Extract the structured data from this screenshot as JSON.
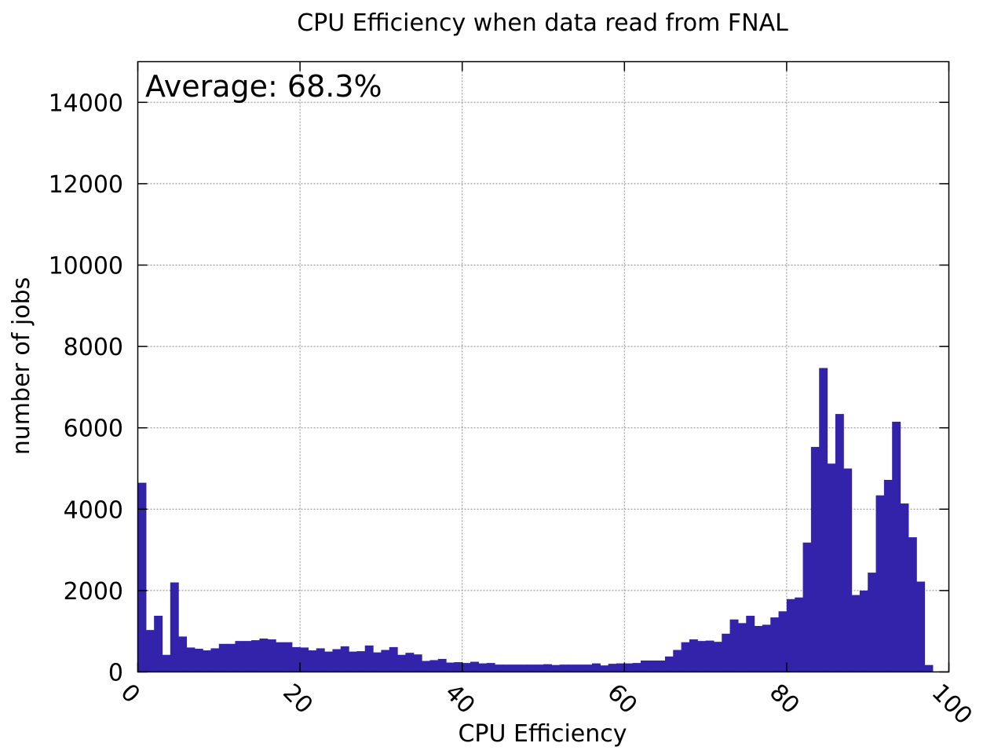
{
  "chart_data": {
    "type": "bar",
    "title": "CPU Efficiency when data read from FNAL",
    "xlabel": "CPU Efficiency",
    "ylabel": "number of jobs",
    "annotation": "Average: 68.3%",
    "xlim": [
      0,
      100
    ],
    "ylim": [
      0,
      15000
    ],
    "x_ticks": [
      0,
      20,
      40,
      60,
      80,
      100
    ],
    "y_ticks": [
      0,
      2000,
      4000,
      6000,
      8000,
      10000,
      12000,
      14000
    ],
    "grid": true,
    "bin_width": 1,
    "bin_start": 0,
    "values": [
      4650,
      1030,
      1380,
      420,
      2200,
      870,
      600,
      570,
      530,
      580,
      690,
      690,
      760,
      760,
      780,
      820,
      800,
      730,
      730,
      610,
      600,
      530,
      580,
      500,
      560,
      630,
      500,
      510,
      650,
      480,
      540,
      610,
      420,
      470,
      430,
      270,
      290,
      320,
      230,
      240,
      220,
      250,
      210,
      220,
      180,
      180,
      180,
      180,
      180,
      180,
      190,
      170,
      180,
      180,
      180,
      180,
      210,
      160,
      200,
      210,
      210,
      220,
      280,
      280,
      280,
      380,
      540,
      730,
      800,
      760,
      770,
      740,
      940,
      1290,
      1200,
      1380,
      1130,
      1160,
      1340,
      1490,
      1790,
      1830,
      3180,
      5530,
      7470,
      5120,
      6340,
      5000,
      1890,
      2000,
      2440,
      4340,
      4720,
      6150,
      4140,
      3310,
      2220,
      170,
      0,
      0
    ],
    "colors": {
      "bar": "#3322aa",
      "axis": "#000000",
      "grid": "#8a8a8a",
      "background": "#ffffff"
    }
  }
}
